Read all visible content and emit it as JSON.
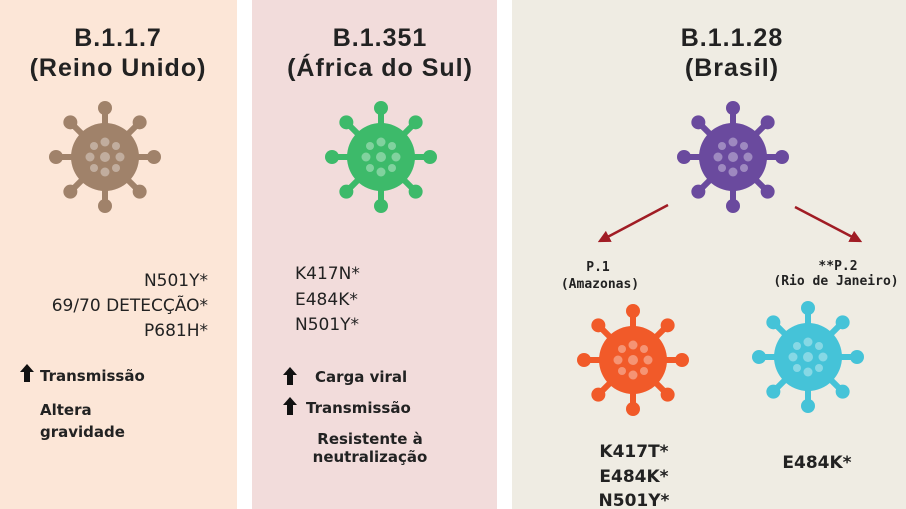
{
  "columns": [
    {
      "title": "B.1.1.7",
      "subtitle": "(Reino Unido)",
      "mutations": [
        "N501Y*",
        "69/70 DETECÇÃO*",
        "P681H*"
      ],
      "effects": [
        [
          "Transmissão"
        ],
        [
          "Altera",
          "gravidade"
        ]
      ]
    },
    {
      "title": "B.1.351",
      "subtitle": "(África do Sul)",
      "mutations": [
        "K417N*",
        "E484K*",
        "N501Y*"
      ],
      "effects": [
        [
          "Carga viral"
        ],
        [
          "Transmissão"
        ],
        [
          "Resistente à",
          "neutralização"
        ]
      ]
    },
    {
      "title": "B.1.1.28",
      "subtitle": "(Brasil)",
      "lineages": [
        {
          "name": "P.1",
          "region": "(Amazonas)",
          "mutations": [
            "K417T*",
            "E484K*",
            "N501Y*"
          ]
        },
        {
          "name": "**P.2",
          "region": "(Rio de Janeiro)",
          "mutations": [
            "E484K*"
          ]
        }
      ]
    }
  ]
}
